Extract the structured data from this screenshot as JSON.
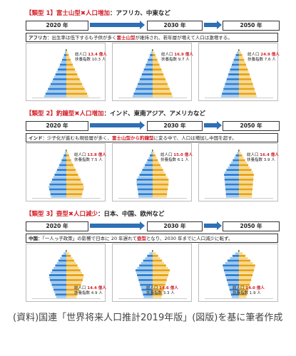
{
  "types": [
    {
      "label_prefix": "【類型 1】",
      "label_key": "富士山型✖人口増加",
      "label_rest": "：アフリカ、中東など",
      "years": [
        "2020 年",
        "2030 年",
        "2050 年"
      ],
      "desc_region": "アフリカ",
      "desc_pre": "：出生率は低下するも子供が多く",
      "desc_highlight": "富士山型",
      "desc_post": "が維持され、若年層が増えて人口は激増する。",
      "panels": [
        {
          "pop_label": "総人口",
          "pop_value": "13.4 億人",
          "dep_label": "扶養指数",
          "dep_value": "10.3 人"
        },
        {
          "pop_label": "総人口",
          "pop_value": "16.9 億人",
          "dep_label": "扶養指数",
          "dep_value": "9.7 人"
        },
        {
          "pop_label": "総人口",
          "pop_value": "24.9 億人",
          "dep_label": "扶養指数",
          "dep_value": "7.6 人"
        }
      ]
    },
    {
      "label_prefix": "【類型 2】",
      "label_key": "釣鐘型✖人口増加",
      "label_rest": "：インド、東南アジア、アメリカなど",
      "years": [
        "2020 年",
        "2030 年",
        "2050 年"
      ],
      "desc_region": "インド",
      "desc_pre": "：少子化が進むも現役層が多く、",
      "desc_highlight": "富士山型から釣鐘型",
      "desc_post": "に変る中で、人口は増加し中国を超す。",
      "panels": [
        {
          "pop_label": "総人口",
          "pop_value": "13.8 億人",
          "dep_label": "扶養指数",
          "dep_value": "7.5 人"
        },
        {
          "pop_label": "総人口",
          "pop_value": "15.0 億人",
          "dep_label": "扶養指数",
          "dep_value": "6.1 人"
        },
        {
          "pop_label": "総人口",
          "pop_value": "16.4 億人",
          "dep_label": "扶養指数",
          "dep_value": "3.9 人"
        }
      ]
    },
    {
      "label_prefix": "【類型 3】",
      "label_key": "壺型✖人口減少",
      "label_rest": "：日本、中国、欧州など",
      "years": [
        "2020 年",
        "2030 年",
        "2050 年"
      ],
      "desc_region": "中国",
      "desc_pre": "：「一人っ子政策」の影響で日本に 20 年遅れて",
      "desc_highlight": "壺型",
      "desc_post": "となり、2030 年までに人口減少に転ず。",
      "panels": [
        {
          "pop_label": "総人口",
          "pop_value": "14.4 億人",
          "dep_label": "扶養指数",
          "dep_value": "4.9 人"
        },
        {
          "pop_label": "総人口",
          "pop_value": "14.6 億人",
          "dep_label": "扶養指数",
          "dep_value": "3.3 人"
        },
        {
          "pop_label": "総人口",
          "pop_value": "14.0 億人",
          "dep_label": "扶養指数",
          "dep_value": "1.9 人"
        }
      ]
    }
  ],
  "source": "(資料)国連「世界将来人口推計2019年版」(図版)を基に筆者作成",
  "colors": {
    "male": "#2e7fd0",
    "male_light": "#9cc8ee",
    "female": "#e8a317",
    "female_light": "#f6d98a",
    "accent": "#d2222a",
    "arrow": "#2f6fb5"
  }
}
